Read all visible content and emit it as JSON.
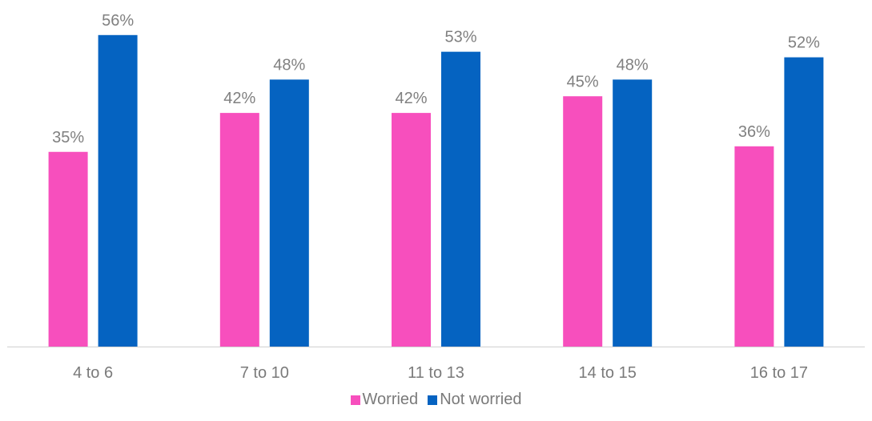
{
  "colors": {
    "worried": "#f74fbd",
    "not_worried": "#0563c1",
    "axis": "#d0d0d0",
    "text": "#7a7a7a"
  },
  "legend": {
    "worried": "Worried",
    "not_worried": "Not worried"
  },
  "chart_data": {
    "type": "bar",
    "categories": [
      "4 to 6",
      "7 to 10",
      "11 to 13",
      "14 to 15",
      "16 to 17"
    ],
    "series": [
      {
        "name": "Worried",
        "values": [
          35,
          42,
          42,
          45,
          36
        ]
      },
      {
        "name": "Not worried",
        "values": [
          56,
          48,
          53,
          48,
          52
        ]
      }
    ],
    "value_suffix": "%",
    "ylim": [
      0,
      60
    ],
    "grid": false,
    "legend_position": "bottom"
  }
}
